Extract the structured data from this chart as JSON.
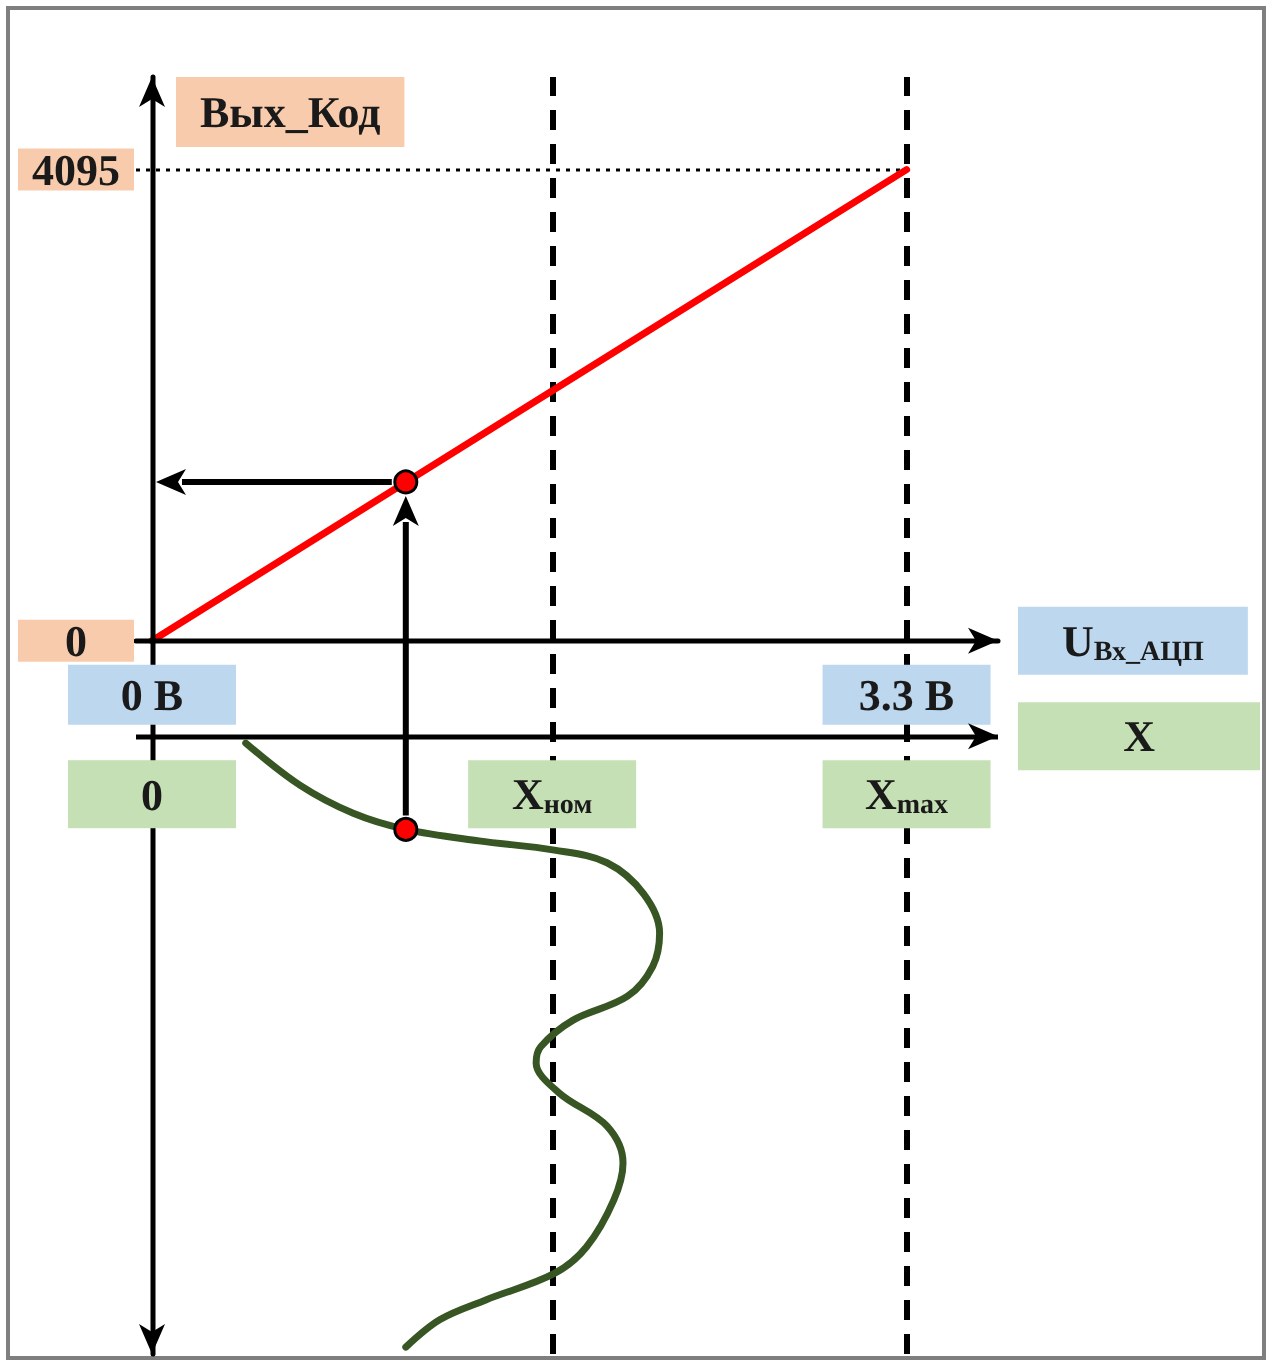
{
  "chart_data": {
    "type": "line",
    "xlabel": "U$_{Вх_АЦП}$",
    "ylabel": "Вых_Код",
    "xlim": [
      -0.07,
      3.7
    ],
    "xticks": [
      {
        "value": 0,
        "label": "0 В"
      },
      {
        "value": 3.3,
        "label": "3.3 В"
      }
    ],
    "ylim": [
      -6200,
      4900
    ],
    "yticks": [
      0,
      4095
    ],
    "series": [
      {
        "color": "#ff0000",
        "x": [
          0,
          3.3
        ],
        "values": [
          0,
          4095
        ]
      },
      {
        "color": "#375623",
        "x": [
          0.41,
          0.65,
          0.88,
          1.11,
          1.43,
          1.76,
          1.99,
          2.15,
          2.22,
          2.19,
          2.08,
          1.84,
          1.7,
          1.68,
          1.78,
          1.99,
          2.06,
          2.02,
          1.9,
          1.76,
          1.46,
          1.26,
          1.11
        ],
        "values": [
          -890,
          -1260,
          -1500,
          -1640,
          -1740,
          -1820,
          -1930,
          -2200,
          -2540,
          -2830,
          -3090,
          -3300,
          -3530,
          -3670,
          -3930,
          -4220,
          -4540,
          -4860,
          -5270,
          -5500,
          -5730,
          -5900,
          -6140
        ]
      },
      {
        "type": "scatter",
        "marker": "circle",
        "color": "#ff0000",
        "x": [
          1.11,
          1.11
        ],
        "values": [
          -1640,
          1380
        ]
      }
    ],
    "ref_lines": [
      {
        "axis": "y",
        "value": -830,
        "label": "X",
        "color": "#000000",
        "line_style": "solid"
      },
      {
        "axis": "x",
        "value": 1.75,
        "label": "X$_{ном}$",
        "color": "#000000",
        "line_style": "dashed"
      },
      {
        "axis": "x",
        "value": 3.3,
        "label": "X$_{max}$",
        "color": "#000000",
        "line_style": "dashed"
      },
      {
        "axis": "y",
        "value": 4095,
        "color": "#000000",
        "line_style": "dotted"
      }
    ],
    "annotations": [
      {
        "text": "0",
        "x": 0,
        "y": -830
      }
    ],
    "marker": "none",
    "grid": false
  }
}
